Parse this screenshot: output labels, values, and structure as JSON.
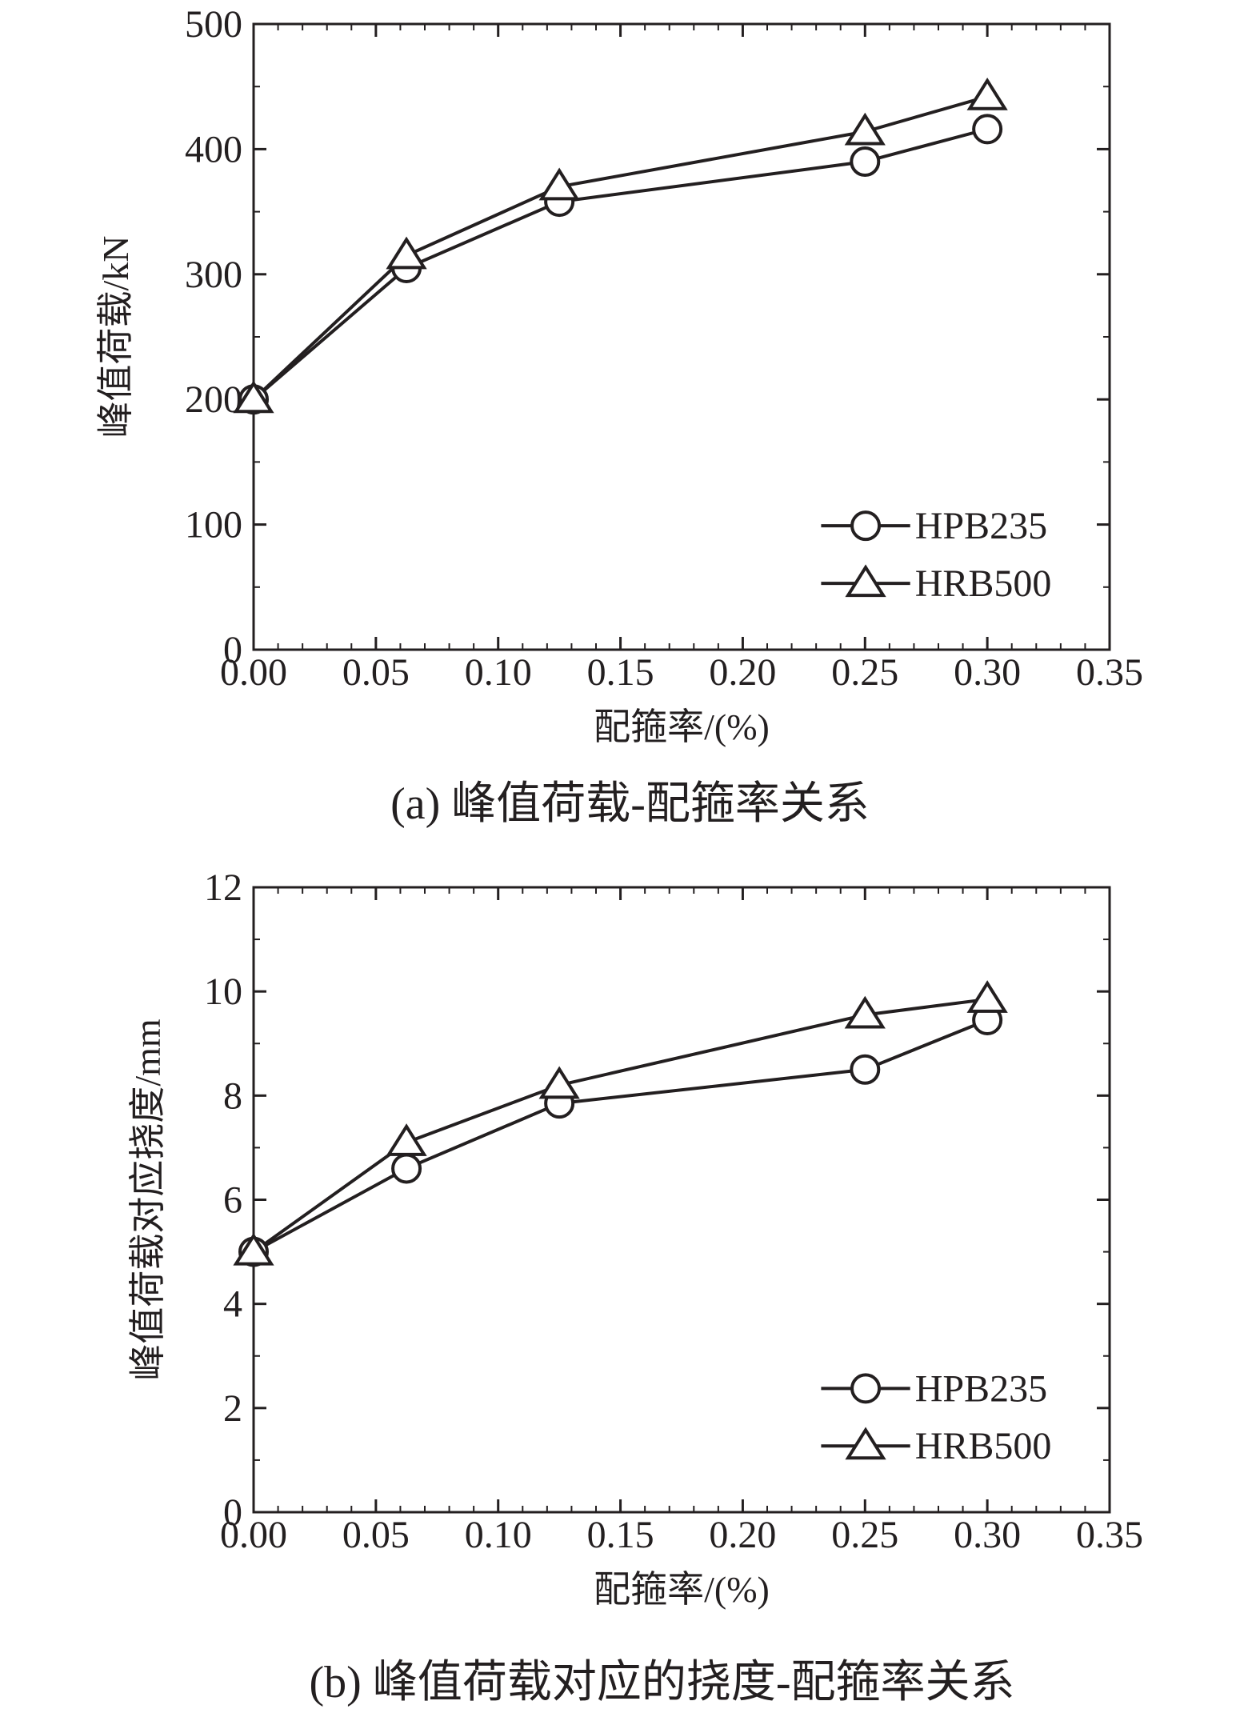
{
  "chart_data": [
    {
      "type": "line",
      "caption": "(a) 峰值荷载-配箍率关系",
      "xlabel": "配箍率/(%)",
      "ylabel": "峰值荷载/kN",
      "xlim": [
        0,
        0.35
      ],
      "ylim": [
        0,
        500
      ],
      "xticks": [
        "0.00",
        "0.05",
        "0.10",
        "0.15",
        "0.20",
        "0.25",
        "0.30",
        "0.35"
      ],
      "yticks": [
        "0",
        "100",
        "200",
        "300",
        "400",
        "500"
      ],
      "legend_position": "bottom-right",
      "series": [
        {
          "name": "HPB235",
          "marker": "circle",
          "x": [
            0,
            0.0625,
            0.125,
            0.25,
            0.3
          ],
          "y": [
            200,
            305,
            358,
            390,
            416
          ]
        },
        {
          "name": "HRB500",
          "marker": "triangle",
          "x": [
            0,
            0.0625,
            0.125,
            0.25,
            0.3
          ],
          "y": [
            200,
            315,
            370,
            414,
            442
          ]
        }
      ]
    },
    {
      "type": "line",
      "caption": "(b) 峰值荷载对应的挠度-配箍率关系",
      "xlabel": "配箍率/(%)",
      "ylabel": "峰值荷载对应挠度/mm",
      "xlim": [
        0,
        0.35
      ],
      "ylim": [
        0,
        12
      ],
      "xticks": [
        "0.00",
        "0.05",
        "0.10",
        "0.15",
        "0.20",
        "0.25",
        "0.30",
        "0.35"
      ],
      "yticks": [
        "0",
        "2",
        "4",
        "6",
        "8",
        "10",
        "12"
      ],
      "legend_position": "bottom-right",
      "series": [
        {
          "name": "HPB235",
          "marker": "circle",
          "x": [
            0,
            0.0625,
            0.125,
            0.25,
            0.3
          ],
          "y": [
            5.0,
            6.6,
            7.85,
            8.5,
            9.45
          ]
        },
        {
          "name": "HRB500",
          "marker": "triangle",
          "x": [
            0,
            0.0625,
            0.125,
            0.25,
            0.3
          ],
          "y": [
            5.0,
            7.1,
            8.2,
            9.55,
            9.85
          ]
        }
      ]
    }
  ]
}
